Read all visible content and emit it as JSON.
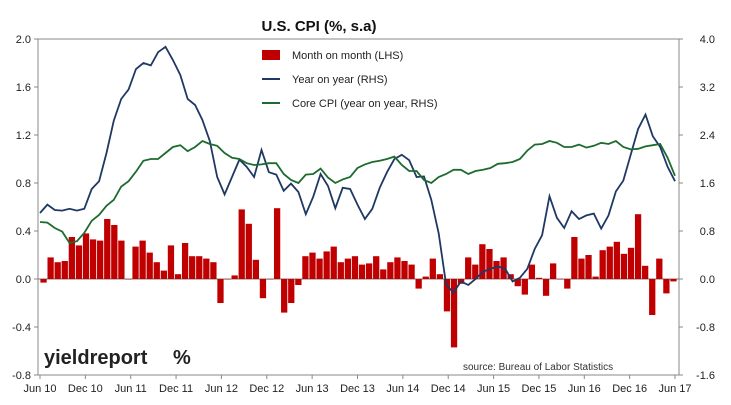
{
  "chart_data": {
    "type": "bar",
    "title": "U.S. CPI (%, s.a)",
    "left_axis": {
      "min": -0.8,
      "max": 2.0,
      "ticks": [
        "2.0",
        "1.6",
        "1.2",
        "0.8",
        "0.4",
        "0.0",
        "-0.4",
        "-0.8"
      ]
    },
    "right_axis": {
      "min": -1.6,
      "max": 4.0,
      "ticks": [
        "4.0",
        "3.2",
        "2.4",
        "1.6",
        "0.8",
        "0.0",
        "-0.8",
        "-1.6"
      ]
    },
    "x_labels": [
      "Jun 10",
      "Dec 10",
      "Jun 11",
      "Dec 11",
      "Jun 12",
      "Dec 12",
      "Jun 13",
      "Dec 13",
      "Jun 14",
      "Dec 14",
      "Jun 15",
      "Dec 15",
      "Jun 16",
      "Dec 16",
      "Jun 17"
    ],
    "grid": false,
    "legend_position": "top-center",
    "series": [
      {
        "name": "Month on month (LHS)",
        "axis": "left",
        "kind": "bar",
        "color": "#c00000",
        "values": [
          -0.03,
          0.18,
          0.14,
          0.15,
          0.35,
          0.28,
          0.38,
          0.33,
          0.32,
          0.5,
          0.45,
          0.32,
          0.0,
          0.27,
          0.32,
          0.22,
          0.14,
          0.07,
          0.28,
          0.04,
          0.3,
          0.19,
          0.19,
          0.17,
          0.14,
          -0.2,
          0.0,
          0.03,
          0.58,
          0.46,
          0.16,
          -0.16,
          0.0,
          0.59,
          -0.28,
          -0.2,
          -0.05,
          0.19,
          0.22,
          0.17,
          0.23,
          0.27,
          0.14,
          0.17,
          0.19,
          0.12,
          0.13,
          0.19,
          0.08,
          0.14,
          0.18,
          0.15,
          0.12,
          -0.08,
          0.02,
          0.17,
          0.04,
          -0.27,
          -0.57,
          -0.04,
          0.18,
          0.12,
          0.29,
          0.25,
          0.15,
          0.18,
          0.04,
          -0.06,
          -0.13,
          0.12,
          0.01,
          -0.14,
          0.13,
          0.0,
          -0.08,
          0.35,
          0.17,
          0.2,
          0.02,
          0.24,
          0.27,
          0.31,
          0.21,
          0.26,
          0.54,
          0.11,
          -0.3,
          0.17,
          -0.12,
          -0.02
        ],
        "x_start": "Jun 2010"
      },
      {
        "name": "Year on year (RHS)",
        "axis": "right",
        "kind": "line",
        "color": "#1f3864",
        "values": [
          1.1,
          1.24,
          1.15,
          1.14,
          1.17,
          1.14,
          1.17,
          1.5,
          1.63,
          2.1,
          2.64,
          3.0,
          3.16,
          3.5,
          3.6,
          3.56,
          3.78,
          3.87,
          3.65,
          3.4,
          3.0,
          2.9,
          2.65,
          2.3,
          1.7,
          1.41,
          1.7,
          1.99,
          1.87,
          1.7,
          2.15,
          1.78,
          1.74,
          1.47,
          1.59,
          1.45,
          1.08,
          1.37,
          1.75,
          1.55,
          1.18,
          1.52,
          1.5,
          1.24,
          1.0,
          1.17,
          1.52,
          1.78,
          2.0,
          2.07,
          1.98,
          1.7,
          1.71,
          1.32,
          0.76,
          -0.09,
          -0.23,
          -0.04,
          -0.1,
          0.0,
          0.12,
          0.17,
          0.21,
          0.17,
          -0.04,
          0.02,
          0.17,
          0.5,
          0.73,
          1.38,
          1.02,
          0.85,
          1.13,
          1.0,
          1.06,
          1.09,
          0.84,
          1.06,
          1.46,
          1.64,
          2.07,
          2.5,
          2.74,
          2.38,
          2.2,
          1.87,
          1.63
        ],
        "x_start": "Jun 2010"
      },
      {
        "name": "Core CPI (year on year, RHS)",
        "axis": "right",
        "kind": "line",
        "color": "#1e6b30",
        "values": [
          0.95,
          0.94,
          0.85,
          0.79,
          0.6,
          0.63,
          0.77,
          0.97,
          1.07,
          1.22,
          1.32,
          1.54,
          1.63,
          1.79,
          1.97,
          2.0,
          2.0,
          2.1,
          2.2,
          2.23,
          2.13,
          2.2,
          2.3,
          2.25,
          2.22,
          2.1,
          2.02,
          2.0,
          1.93,
          1.9,
          1.91,
          1.93,
          1.93,
          1.75,
          1.65,
          1.6,
          1.74,
          1.75,
          1.84,
          1.69,
          1.6,
          1.66,
          1.7,
          1.85,
          1.91,
          1.95,
          1.97,
          2.0,
          2.04,
          1.9,
          1.8,
          1.8,
          1.65,
          1.6,
          1.7,
          1.75,
          1.82,
          1.82,
          1.75,
          1.8,
          1.82,
          1.85,
          1.92,
          1.93,
          1.95,
          2.0,
          2.14,
          2.24,
          2.25,
          2.3,
          2.27,
          2.2,
          2.2,
          2.24,
          2.19,
          2.22,
          2.27,
          2.25,
          2.3,
          2.2,
          2.16,
          2.17,
          2.21,
          2.23,
          2.25,
          2.02,
          1.72
        ],
        "x_start": "Jun 2010"
      }
    ],
    "annotations": [
      "source: Bureau of Labor Statistics"
    ]
  },
  "branding": {
    "logo_main": "yieldreport",
    "logo_pct": "%"
  },
  "colors": {
    "bar": "#c00000",
    "yoy": "#1f3864",
    "core": "#1e6b30",
    "logo_pct_red": "#c00000",
    "logo_pct_green": "#3a7d2c"
  }
}
